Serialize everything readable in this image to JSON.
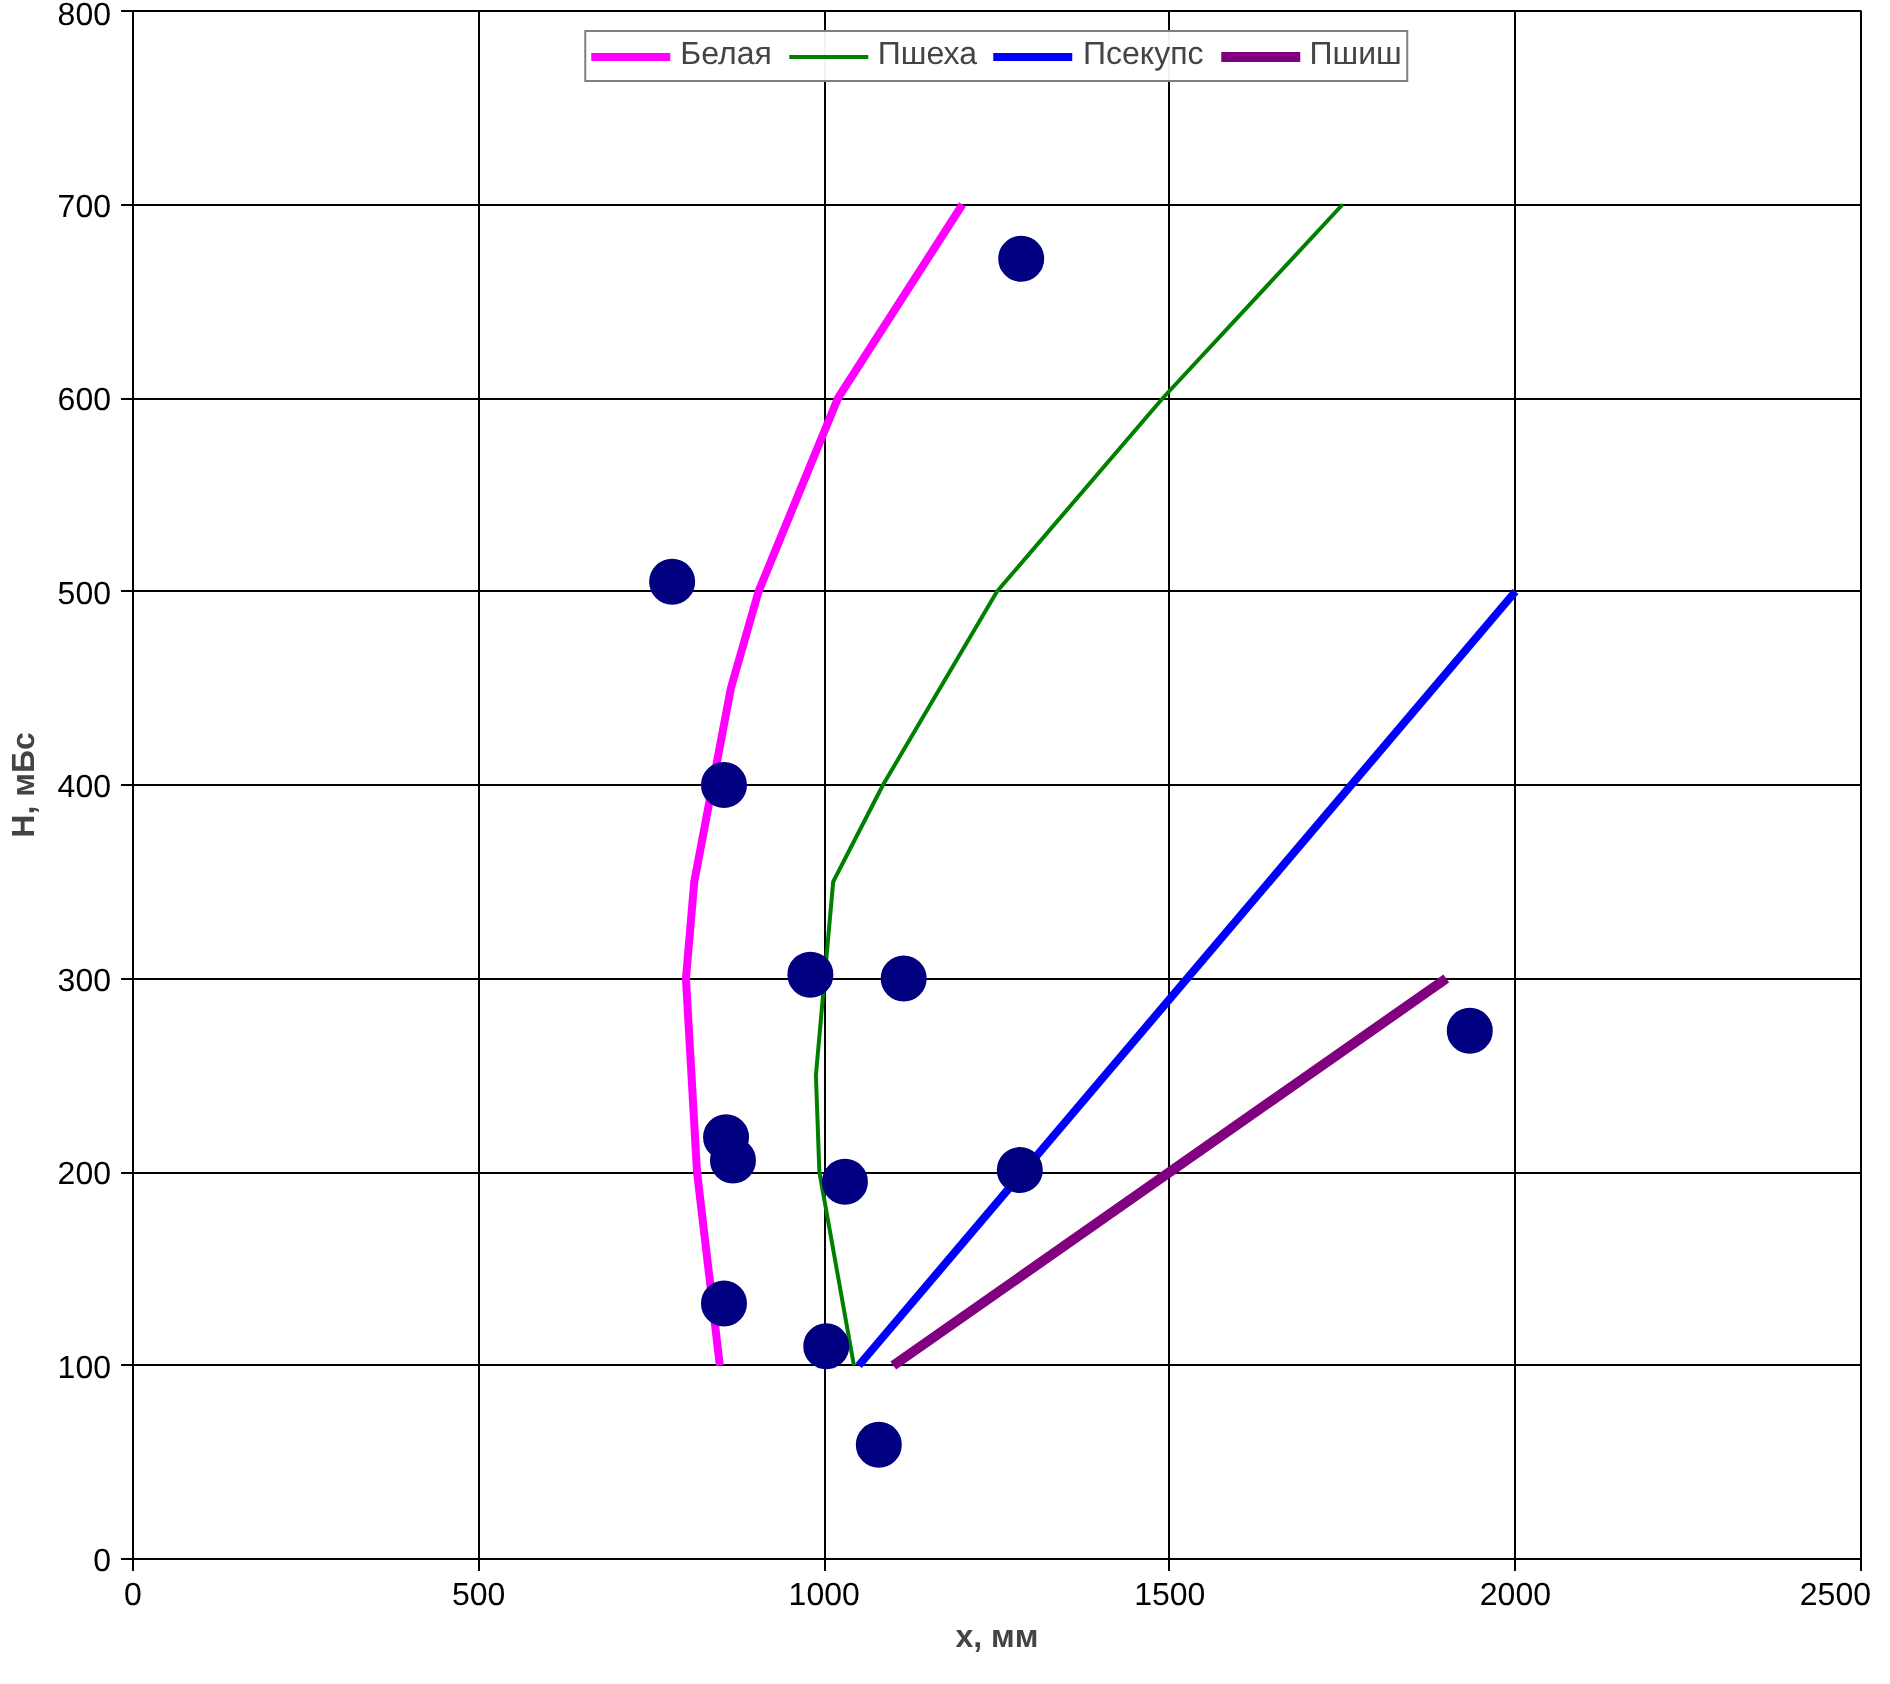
{
  "chart_data": {
    "type": "line",
    "xlabel": "x, мм",
    "ylabel": "H, мБс",
    "xlim": [
      0,
      2500
    ],
    "ylim": [
      0,
      800
    ],
    "xticks": [
      0,
      500,
      1000,
      1500,
      2000,
      2500
    ],
    "yticks": [
      0,
      100,
      200,
      300,
      400,
      500,
      600,
      700,
      800
    ],
    "grid": true,
    "legend": "top",
    "series": [
      {
        "name": "Белая",
        "color": "#ff00ff",
        "x": [
          849,
          816,
          800,
          812,
          865,
          905,
          1020,
          1200
        ],
        "values": [
          100,
          200,
          300,
          350,
          450,
          500,
          600,
          700
        ]
      },
      {
        "name": "Пшеха",
        "color": "#008000",
        "x": [
          1043,
          993,
          988,
          1013,
          1085,
          1250,
          1490,
          1750
        ],
        "values": [
          100,
          200,
          250,
          350,
          400,
          500,
          600,
          700
        ]
      },
      {
        "name": "Псекупс",
        "color": "#0000ff",
        "x": [
          1050,
          2000
        ],
        "values": [
          100,
          500
        ]
      },
      {
        "name": "Пшиш",
        "color": "#800080",
        "x": [
          1100,
          1900
        ],
        "values": [
          100,
          300
        ]
      },
      {
        "type": "scatter",
        "marker": "circle",
        "color": "#000080",
        "x": [
          780,
          855,
          1285,
          980,
          1115,
          858,
          868,
          1030,
          1283,
          855,
          1003,
          1079,
          1934
        ],
        "values": [
          505,
          400,
          672,
          302,
          300,
          218,
          206,
          195,
          201,
          132,
          110,
          59,
          273
        ]
      }
    ]
  }
}
